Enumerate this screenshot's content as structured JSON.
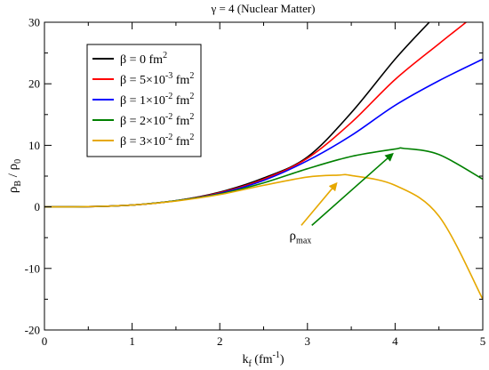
{
  "chart_data": {
    "type": "line",
    "title": "γ = 4 (Nuclear Matter)",
    "xlabel": {
      "main": "k",
      "sub": "f",
      "rest": " (fm",
      "sup": "-1",
      "end": ")"
    },
    "ylabel": {
      "a": "ρ",
      "a_sub": "B",
      "slash": " / ",
      "b": "ρ",
      "b_sub": "0"
    },
    "xlim": [
      0,
      5
    ],
    "ylim": [
      -20,
      30
    ],
    "x_ticks": [
      0,
      1,
      2,
      3,
      4,
      5
    ],
    "y_ticks": [
      -20,
      -10,
      0,
      10,
      20,
      30
    ],
    "grid": false,
    "legend_position": "top-left",
    "series": [
      {
        "name": "β = 0 fm²",
        "legend": {
          "pre": "β = 0 fm",
          "sup": "2"
        },
        "color": "#000000",
        "x": [
          0,
          0.5,
          1,
          1.5,
          2,
          2.5,
          3,
          3.5,
          4,
          4.39
        ],
        "y": [
          0,
          0.04,
          0.3,
          1.01,
          2.4,
          4.69,
          8.1,
          15.3,
          24.0,
          30
        ]
      },
      {
        "name": "β = 5×10⁻³ fm²",
        "legend": {
          "pre": "β = 5×10",
          "sup1": "-3",
          "mid": " fm",
          "sup": "2"
        },
        "color": "#ff0000",
        "x": [
          0,
          0.5,
          1,
          1.5,
          2,
          2.5,
          3,
          3.5,
          4,
          4.5,
          4.81
        ],
        "y": [
          0,
          0.04,
          0.3,
          1.0,
          2.3,
          4.5,
          7.9,
          13.7,
          20.7,
          26.5,
          30
        ]
      },
      {
        "name": "β = 1×10⁻² fm²",
        "legend": {
          "pre": "β = 1×10",
          "sup1": "-2",
          "mid": " fm",
          "sup": "2"
        },
        "color": "#0000ff",
        "x": [
          0,
          0.5,
          1,
          1.5,
          2,
          2.5,
          3,
          3.5,
          4,
          4.5,
          5
        ],
        "y": [
          0,
          0.04,
          0.3,
          1.0,
          2.2,
          4.3,
          7.5,
          11.6,
          16.5,
          20.5,
          24.0
        ]
      },
      {
        "name": "β = 2×10⁻² fm²",
        "legend": {
          "pre": "β = 2×10",
          "sup1": "-2",
          "mid": " fm",
          "sup": "2"
        },
        "color": "#008000",
        "x": [
          0,
          0.5,
          1,
          1.5,
          2,
          2.5,
          3,
          3.5,
          4,
          4.1,
          4.5,
          5
        ],
        "y": [
          0,
          0.04,
          0.3,
          1.0,
          2.1,
          3.9,
          6.2,
          8.2,
          9.4,
          9.5,
          8.5,
          4.5
        ]
      },
      {
        "name": "β = 3×10⁻² fm²",
        "legend": {
          "pre": "β = 3×10",
          "sup1": "-2",
          "mid": " fm",
          "sup": "2"
        },
        "color": "#e6a800",
        "x": [
          0,
          0.5,
          1,
          1.5,
          2,
          2.5,
          3,
          3.35,
          3.5,
          4,
          4.5,
          5
        ],
        "y": [
          0,
          0.04,
          0.3,
          0.95,
          2.0,
          3.5,
          4.85,
          5.15,
          5.1,
          3.5,
          -1.5,
          -15.0
        ]
      }
    ],
    "annotation": {
      "text": "ρ",
      "sub": "max",
      "x": 2.92,
      "y": -5.3,
      "arrows": [
        {
          "color": "#e6a800",
          "from": [
            2.93,
            -3.0
          ],
          "to": [
            3.33,
            3.8
          ]
        },
        {
          "color": "#008000",
          "from": [
            3.05,
            -3.0
          ],
          "to": [
            3.97,
            8.6
          ]
        }
      ]
    }
  }
}
